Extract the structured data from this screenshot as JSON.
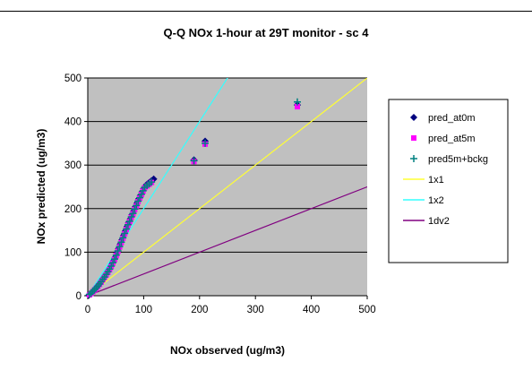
{
  "chart_data": {
    "type": "scatter",
    "title": "Q-Q NOx 1-hour at 29T monitor - sc 4",
    "xlabel": "NOx observed (ug/m3)",
    "ylabel": "NOx predicted (ug/m3)",
    "xlim": [
      0,
      500
    ],
    "ylim": [
      0,
      500
    ],
    "xticks": [
      0,
      100,
      200,
      300,
      400,
      500
    ],
    "yticks": [
      0,
      100,
      200,
      300,
      400,
      500
    ],
    "grid": "horizontal",
    "plot_background": "#c0c0c0",
    "legend_position": "right",
    "series": [
      {
        "name": "pred_at0m",
        "marker": "diamond",
        "color": "#000080",
        "x": [
          2,
          5,
          8,
          10,
          13,
          16,
          19,
          22,
          25,
          28,
          31,
          34,
          37,
          40,
          43,
          46,
          49,
          52,
          55,
          58,
          61,
          64,
          67,
          70,
          73,
          76,
          79,
          82,
          85,
          88,
          91,
          94,
          97,
          100,
          103,
          106,
          110,
          114,
          118,
          190,
          210,
          375
        ],
        "y": [
          1,
          4,
          8,
          11,
          15,
          19,
          24,
          29,
          35,
          40,
          46,
          52,
          58,
          64,
          72,
          80,
          88,
          98,
          108,
          118,
          128,
          138,
          148,
          158,
          168,
          176,
          186,
          194,
          204,
          212,
          222,
          230,
          238,
          246,
          252,
          256,
          260,
          264,
          268,
          312,
          355,
          438
        ]
      },
      {
        "name": "pred_at5m",
        "marker": "square",
        "color": "#ff00ff",
        "x": [
          3,
          6,
          9,
          12,
          15,
          18,
          21,
          24,
          27,
          30,
          33,
          36,
          39,
          42,
          45,
          48,
          51,
          54,
          57,
          60,
          63,
          66,
          69,
          72,
          75,
          78,
          81,
          84,
          87,
          90,
          93,
          96,
          99,
          102,
          106,
          110,
          114,
          190,
          210,
          375
        ],
        "y": [
          2,
          5,
          9,
          13,
          17,
          21,
          26,
          31,
          37,
          42,
          48,
          54,
          60,
          67,
          75,
          83,
          92,
          102,
          112,
          122,
          132,
          142,
          152,
          162,
          170,
          180,
          188,
          198,
          206,
          216,
          224,
          232,
          240,
          248,
          252,
          256,
          260,
          308,
          348,
          434
        ]
      },
      {
        "name": "pred5m+bckg",
        "marker": "plus",
        "color": "#008080",
        "x": [
          3,
          6,
          9,
          12,
          15,
          18,
          21,
          24,
          27,
          30,
          33,
          36,
          39,
          42,
          45,
          48,
          51,
          54,
          57,
          60,
          63,
          66,
          69,
          72,
          75,
          78,
          81,
          84,
          87,
          90,
          93,
          96,
          99,
          102,
          106,
          110,
          114,
          190,
          210,
          375
        ],
        "y": [
          3,
          6,
          10,
          14,
          18,
          22,
          27,
          32,
          38,
          43,
          49,
          55,
          61,
          68,
          76,
          84,
          93,
          103,
          113,
          123,
          133,
          143,
          153,
          163,
          171,
          181,
          189,
          199,
          207,
          217,
          225,
          233,
          241,
          249,
          253,
          257,
          261,
          310,
          350,
          445
        ]
      },
      {
        "name": "1x1",
        "type": "line",
        "color": "#ffff33",
        "x": [
          0,
          500
        ],
        "y": [
          0,
          500
        ]
      },
      {
        "name": "1x2",
        "type": "line",
        "color": "#33ffff",
        "x": [
          0,
          255
        ],
        "y": [
          0,
          510
        ]
      },
      {
        "name": "1dv2",
        "type": "line",
        "color": "#800080",
        "x": [
          0,
          500
        ],
        "y": [
          0,
          250
        ]
      }
    ]
  }
}
